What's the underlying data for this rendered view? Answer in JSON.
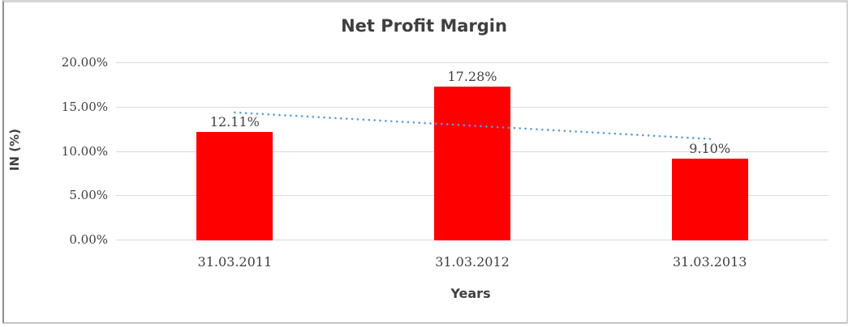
{
  "chart_data": {
    "type": "bar",
    "title": "Net Profit Margin",
    "xlabel": "Years",
    "ylabel": "IN (%)",
    "categories": [
      "31.03.2011",
      "31.03.2012",
      "31.03.2013"
    ],
    "series": [
      {
        "name": "Net Profit Margin",
        "values": [
          12.11,
          17.28,
          9.1
        ]
      }
    ],
    "data_labels": [
      "12.11%",
      "17.28%",
      "9.10%"
    ],
    "ylim": [
      0,
      20
    ],
    "ytick_step": 5,
    "ytick_labels": [
      "0.00%",
      "5.00%",
      "10.00%",
      "15.00%",
      "20.00%"
    ],
    "grid": true,
    "legend": "none",
    "bar_color": "#ff0000",
    "gridline_color": "#d9d9d9",
    "text_color": "#404040",
    "trendline": {
      "type": "linear",
      "style": "dotted",
      "color": "#5b9bd5",
      "start_value": 14.34,
      "end_value": 11.33
    }
  }
}
